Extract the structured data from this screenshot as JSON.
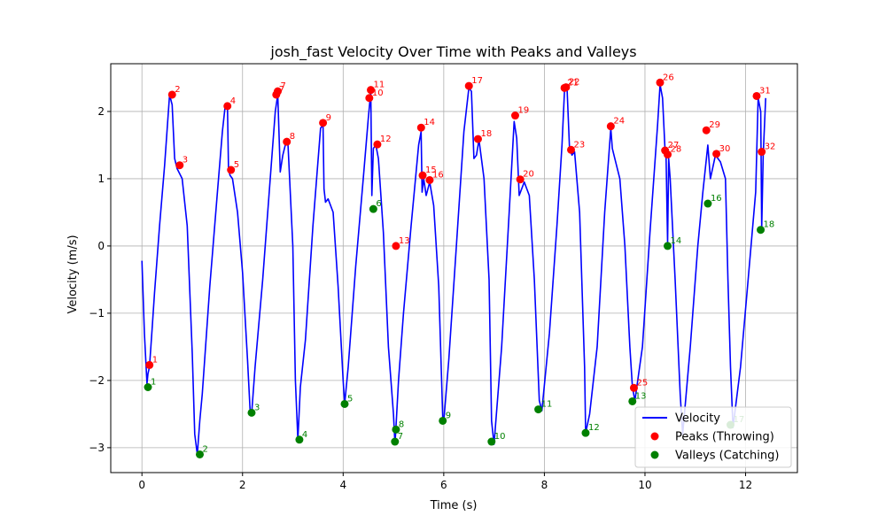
{
  "chart_data": {
    "type": "line",
    "title": "josh_fast Velocity Over Time with Peaks and Valleys",
    "xlabel": "Time (s)",
    "ylabel": "Velocity (m/s)",
    "xlim": [
      -0.62,
      13.03
    ],
    "ylim": [
      -3.37,
      2.71
    ],
    "x_ticks": [
      0,
      2,
      4,
      6,
      8,
      10,
      12
    ],
    "x_tick_labels": [
      "0",
      "2",
      "4",
      "6",
      "8",
      "10",
      "12"
    ],
    "y_ticks": [
      -3,
      -2,
      -1,
      0,
      1,
      2
    ],
    "y_tick_labels": [
      "−3",
      "−2",
      "−1",
      "0",
      "1",
      "2"
    ],
    "grid": true,
    "legend_position": "bottom-right",
    "colors": {
      "velocity": "#0000ff",
      "peaks": "#ff0000",
      "valleys": "#008000"
    },
    "series": [
      {
        "name": "Velocity",
        "kind": "line",
        "x": [
          0.0,
          0.05,
          0.1,
          0.12,
          0.15,
          0.2,
          0.25,
          0.35,
          0.45,
          0.55,
          0.6,
          0.65,
          0.7,
          0.8,
          0.9,
          1.0,
          1.05,
          1.1,
          1.15,
          1.2,
          1.35,
          1.5,
          1.6,
          1.65,
          1.7,
          1.72,
          1.75,
          1.8,
          1.9,
          2.0,
          2.1,
          2.15,
          2.18,
          2.25,
          2.4,
          2.55,
          2.65,
          2.7,
          2.75,
          2.8,
          2.85,
          2.9,
          3.0,
          3.05,
          3.1,
          3.15,
          3.25,
          3.4,
          3.55,
          3.6,
          3.62,
          3.65,
          3.7,
          3.8,
          3.9,
          4.0,
          4.03,
          4.1,
          4.25,
          4.4,
          4.5,
          4.55,
          4.57,
          4.6,
          4.65,
          4.7,
          4.8,
          4.9,
          5.0,
          5.03,
          5.05,
          5.1,
          5.2,
          5.35,
          5.5,
          5.55,
          5.57,
          5.6,
          5.65,
          5.72,
          5.8,
          5.9,
          5.98,
          6.0,
          6.1,
          6.25,
          6.4,
          6.5,
          6.55,
          6.6,
          6.65,
          6.7,
          6.8,
          6.9,
          6.95,
          7.0,
          7.15,
          7.3,
          7.4,
          7.45,
          7.5,
          7.6,
          7.7,
          7.8,
          7.9,
          7.95,
          8.1,
          8.25,
          8.35,
          8.4,
          8.45,
          8.5,
          8.55,
          8.6,
          8.7,
          8.8,
          8.82,
          8.9,
          9.05,
          9.2,
          9.32,
          9.35,
          9.4,
          9.5,
          9.6,
          9.7,
          9.75,
          9.8,
          9.95,
          10.1,
          10.25,
          10.3,
          10.35,
          10.4,
          10.42,
          10.45,
          10.47,
          10.5,
          10.6,
          10.7,
          10.75,
          10.9,
          11.05,
          11.15,
          11.25,
          11.3,
          11.4,
          11.5,
          11.6,
          11.65,
          11.7,
          11.75,
          11.9,
          12.05,
          12.2,
          12.25,
          12.3,
          12.32,
          12.35,
          12.4
        ],
        "y": [
          -0.22,
          -1.3,
          -2.05,
          -1.9,
          -1.8,
          -1.25,
          -0.7,
          0.3,
          1.2,
          2.25,
          2.1,
          1.3,
          1.15,
          1.0,
          0.3,
          -1.6,
          -2.8,
          -3.1,
          -2.6,
          -2.2,
          -0.6,
          0.8,
          1.7,
          2.05,
          2.1,
          1.15,
          1.05,
          1.0,
          0.5,
          -0.4,
          -1.7,
          -2.45,
          -2.5,
          -1.8,
          -0.5,
          1.0,
          2.0,
          2.25,
          1.1,
          1.35,
          1.5,
          1.55,
          0.0,
          -2.0,
          -2.88,
          -2.1,
          -1.4,
          0.3,
          1.75,
          1.8,
          0.85,
          0.65,
          0.7,
          0.5,
          -0.6,
          -2.0,
          -2.35,
          -1.8,
          -0.3,
          1.0,
          1.9,
          2.3,
          0.75,
          1.45,
          1.5,
          1.3,
          0.2,
          -1.5,
          -2.5,
          -2.95,
          -2.7,
          -2.0,
          -1.0,
          0.3,
          1.5,
          1.7,
          0.8,
          1.0,
          0.75,
          0.95,
          0.6,
          -0.6,
          -2.55,
          -2.6,
          -1.7,
          0.0,
          1.7,
          2.35,
          2.3,
          1.3,
          1.35,
          1.58,
          1.0,
          -0.5,
          -2.6,
          -2.95,
          -1.5,
          0.5,
          1.85,
          1.6,
          0.75,
          0.95,
          0.75,
          -0.5,
          -2.3,
          -2.45,
          -1.3,
          0.3,
          1.5,
          2.3,
          2.35,
          1.45,
          1.35,
          1.4,
          0.5,
          -1.8,
          -2.78,
          -2.5,
          -1.5,
          0.5,
          1.75,
          1.45,
          1.3,
          1.0,
          0.0,
          -1.5,
          -2.1,
          -2.3,
          -1.5,
          0.2,
          1.8,
          2.4,
          2.2,
          1.4,
          1.3,
          0.05,
          1.3,
          1.0,
          -0.5,
          -2.2,
          -2.8,
          -1.5,
          0.0,
          0.8,
          1.5,
          1.0,
          1.35,
          1.25,
          1.0,
          -0.5,
          -1.8,
          -2.7,
          -1.8,
          -0.5,
          0.8,
          2.2,
          2.0,
          0.25,
          1.35,
          2.2
        ]
      },
      {
        "name": "Peaks (Throwing)",
        "kind": "scatter",
        "x": [
          0.15,
          0.6,
          0.75,
          1.7,
          1.77,
          2.67,
          2.7,
          2.88,
          3.6,
          4.52,
          4.55,
          4.68,
          5.05,
          5.55,
          5.58,
          5.72,
          6.5,
          6.68,
          7.42,
          7.52,
          8.4,
          8.43,
          8.53,
          9.32,
          9.78,
          10.3,
          10.4,
          10.45,
          11.22,
          11.42,
          12.22,
          12.32
        ],
        "y": [
          -1.77,
          2.25,
          1.2,
          2.08,
          1.13,
          2.25,
          2.3,
          1.55,
          1.83,
          2.2,
          2.32,
          1.51,
          0.0,
          1.76,
          1.05,
          0.98,
          2.38,
          1.59,
          1.94,
          0.99,
          2.35,
          2.36,
          1.43,
          1.78,
          -2.11,
          2.43,
          1.42,
          1.36,
          1.72,
          1.37,
          2.23,
          1.4
        ],
        "labels": [
          "1",
          "2",
          "3",
          "4",
          "5",
          "7",
          "7",
          "8",
          "9",
          "10",
          "11",
          "12",
          "13",
          "14",
          "15",
          "16",
          "17",
          "18",
          "19",
          "20",
          "21",
          "22",
          "23",
          "24",
          "25",
          "26",
          "27",
          "28",
          "29",
          "30",
          "31",
          "32"
        ]
      },
      {
        "name": "Valleys (Catching)",
        "kind": "scatter",
        "x": [
          0.12,
          1.15,
          2.18,
          3.13,
          4.03,
          4.6,
          5.03,
          5.05,
          5.98,
          6.95,
          7.88,
          8.82,
          9.75,
          10.45,
          11.25,
          11.7,
          12.3
        ],
        "y": [
          -2.1,
          -3.1,
          -2.48,
          -2.88,
          -2.35,
          0.55,
          -2.91,
          -2.73,
          -2.6,
          -2.91,
          -2.43,
          -2.78,
          -2.31,
          0.0,
          0.63,
          -2.66,
          0.24
        ],
        "labels": [
          "1",
          "2",
          "3",
          "4",
          "5",
          "6",
          "7",
          "8",
          "9",
          "10",
          "11",
          "12",
          "13",
          "14",
          "16",
          "17",
          "18"
        ]
      }
    ]
  }
}
